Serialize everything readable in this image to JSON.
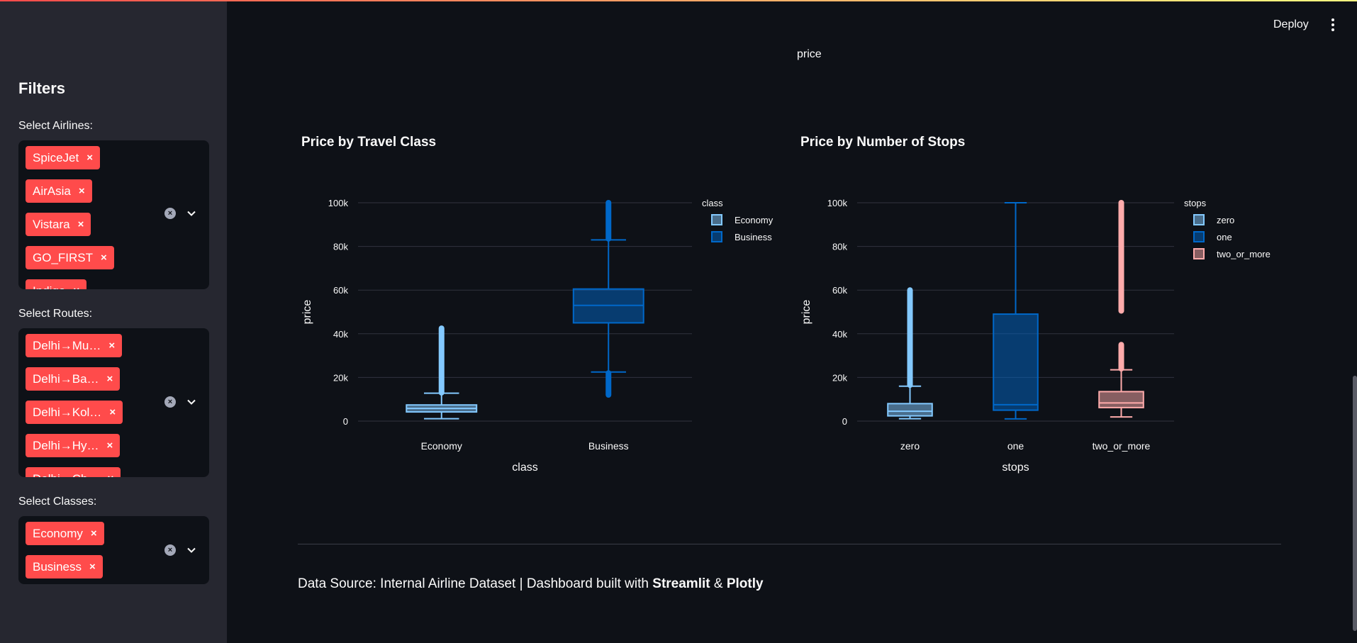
{
  "header": {
    "deploy_label": "Deploy"
  },
  "main": {
    "top_label": "price"
  },
  "sidebar": {
    "title": "Filters",
    "airlines": {
      "label": "Select Airlines:",
      "tags": [
        "SpiceJet",
        "AirAsia",
        "Vistara",
        "GO_FIRST",
        "Indigo"
      ]
    },
    "routes": {
      "label": "Select Routes:",
      "tags": [
        "Delhi→Mu…",
        "Delhi→Ba…",
        "Delhi→Kol…",
        "Delhi→Hy…",
        "Delhi→Ch…"
      ]
    },
    "classes": {
      "label": "Select Classes:",
      "tags": [
        "Economy",
        "Business"
      ]
    },
    "tag_remove": "×",
    "clear_icon": "×"
  },
  "chart_data": [
    {
      "type": "box",
      "title": "Price by Travel Class",
      "xlabel": "class",
      "ylabel": "price",
      "ylim": [
        0,
        100000
      ],
      "yticks": [
        0,
        20000,
        40000,
        60000,
        80000,
        100000
      ],
      "yticklabels": [
        "0",
        "20k",
        "40k",
        "60k",
        "80k",
        "100k"
      ],
      "categories": [
        "Economy",
        "Business"
      ],
      "legend": {
        "title": "class",
        "position": "top-right"
      },
      "series": [
        {
          "name": "Economy",
          "color": "#83c9ff",
          "min": 1100,
          "q1": 4200,
          "median": 5800,
          "q3": 7400,
          "upper_fence": 12800,
          "outliers_from": 13000,
          "outliers_to": 42500
        },
        {
          "name": "Business",
          "color": "#0068c9",
          "min": 22500,
          "q1": 45000,
          "median": 53000,
          "q3": 60500,
          "upper_fence": 83000,
          "lower_outliers_from": 12000,
          "lower_outliers_to": 22000,
          "outliers_from": 83500,
          "outliers_to": 100000
        }
      ]
    },
    {
      "type": "box",
      "title": "Price by Number of Stops",
      "xlabel": "stops",
      "ylabel": "price",
      "ylim": [
        0,
        100000
      ],
      "yticks": [
        0,
        20000,
        40000,
        60000,
        80000,
        100000
      ],
      "yticklabels": [
        "0",
        "20k",
        "40k",
        "60k",
        "80k",
        "100k"
      ],
      "categories": [
        "zero",
        "one",
        "two_or_more"
      ],
      "legend": {
        "title": "stops",
        "position": "top-right"
      },
      "series": [
        {
          "name": "zero",
          "color": "#83c9ff",
          "min": 1100,
          "q1": 2400,
          "median": 4500,
          "q3": 8000,
          "upper_fence": 16000,
          "outliers_from": 16500,
          "outliers_to": 60000
        },
        {
          "name": "one",
          "color": "#0068c9",
          "min": 1000,
          "q1": 5000,
          "median": 7500,
          "q3": 49000,
          "upper_fence": 100000
        },
        {
          "name": "two_or_more",
          "color": "#ffabab",
          "min": 1900,
          "q1": 6200,
          "median": 8300,
          "q3": 13500,
          "upper_fence": 23500,
          "outliers_from": 24000,
          "outliers_to": 35000,
          "outliers2_from": 50500,
          "outliers2_to": 100000
        }
      ]
    }
  ],
  "footer": {
    "prefix": "Data Source: Internal Airline Dataset | Dashboard built with ",
    "brand1": "Streamlit",
    "amp": " & ",
    "brand2": "Plotly"
  }
}
